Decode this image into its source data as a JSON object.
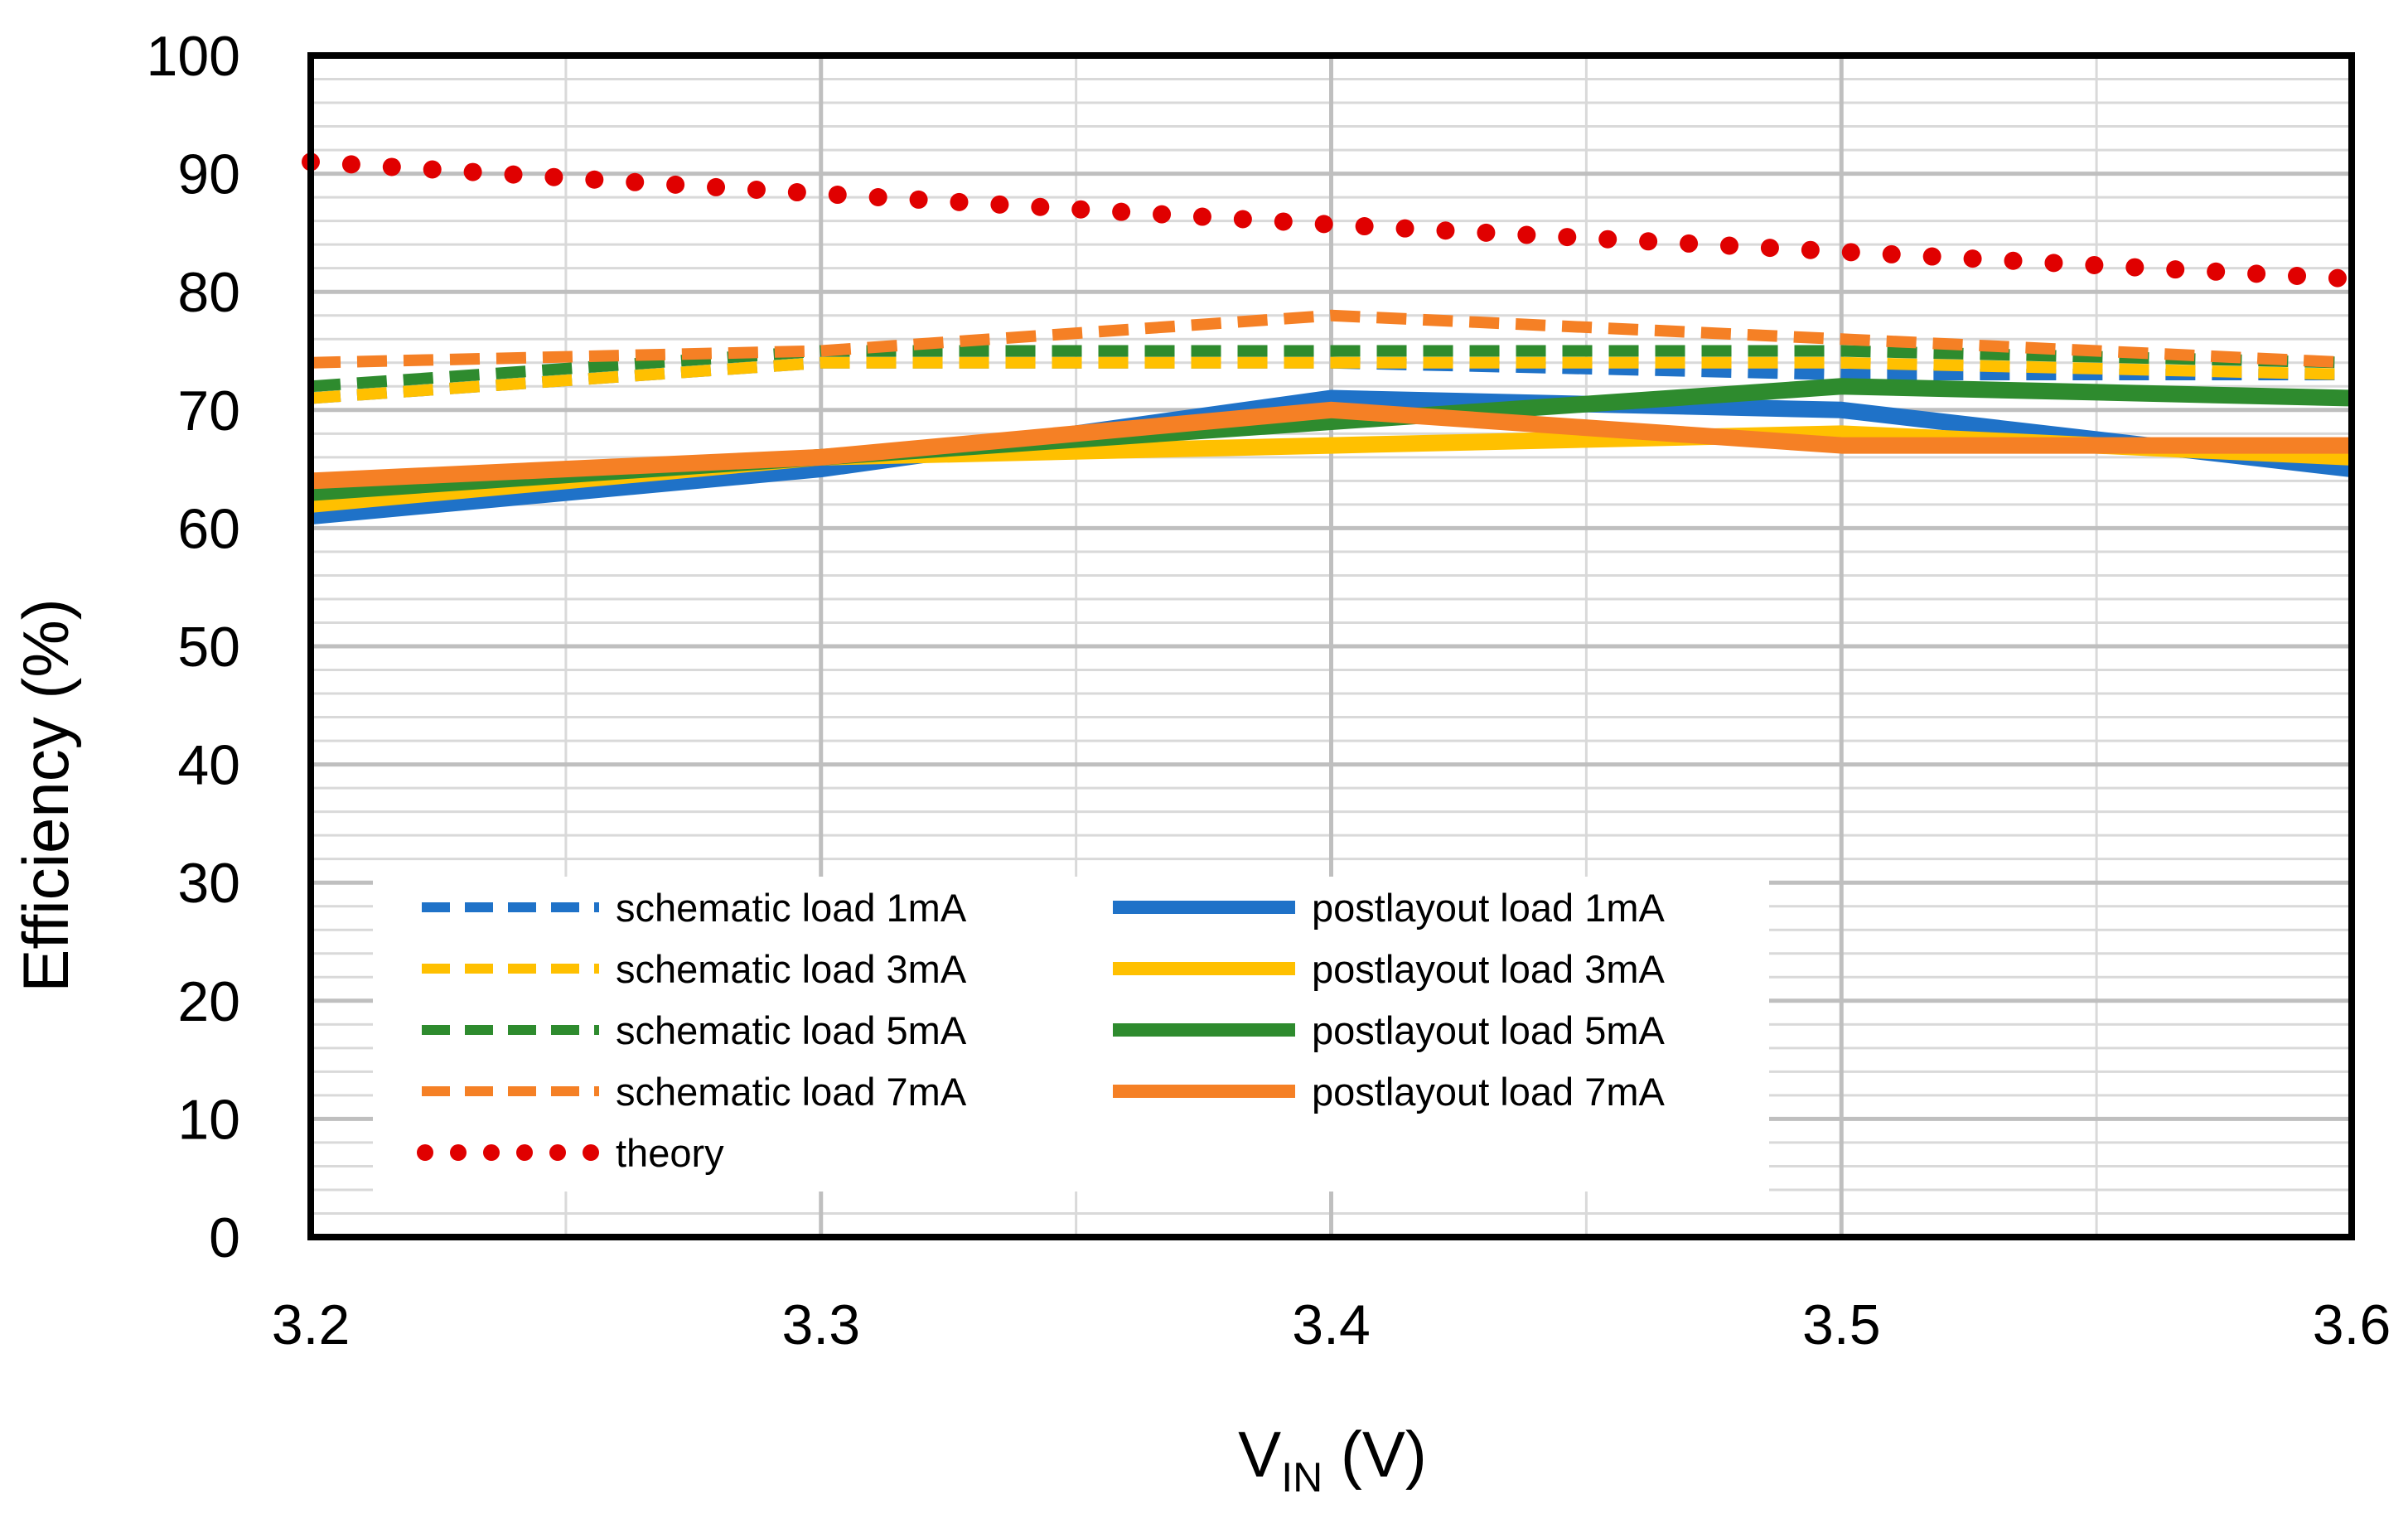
{
  "chart_data": {
    "type": "line",
    "title": "",
    "xlabel": "VIN (V)",
    "xlabel_main": "V",
    "xlabel_sub": "IN",
    "xlabel_suffix": " (V)",
    "ylabel": "Efficiency (%)",
    "xlim": [
      3.2,
      3.6
    ],
    "ylim": [
      0,
      100
    ],
    "x_ticks": [
      "3.2",
      "3.3",
      "3.4",
      "3.5",
      "3.6"
    ],
    "y_ticks": [
      "0",
      "10",
      "20",
      "30",
      "40",
      "50",
      "60",
      "70",
      "80",
      "90",
      "100"
    ],
    "grid": true,
    "legend_position": "lower-left",
    "x": [
      3.2,
      3.3,
      3.4,
      3.5,
      3.6
    ],
    "series": [
      {
        "name": "schematic load 1mA",
        "style": "dashed",
        "color": "#1F72C8",
        "values": [
          71,
          74,
          74,
          73,
          73
        ]
      },
      {
        "name": "postlayout load 1mA",
        "style": "solid",
        "color": "#1F72C8",
        "values": [
          61,
          65,
          71,
          70,
          65
        ]
      },
      {
        "name": "schematic load 3mA",
        "style": "dashed",
        "color": "#FFC000",
        "values": [
          71,
          74,
          74,
          74,
          73
        ]
      },
      {
        "name": "postlayout load 3mA",
        "style": "solid",
        "color": "#FFC000",
        "values": [
          62,
          66,
          67,
          68,
          66
        ]
      },
      {
        "name": "schematic load 5mA",
        "style": "dashed",
        "color": "#2E8B2E",
        "values": [
          72,
          75,
          75,
          75,
          74
        ]
      },
      {
        "name": "postlayout load 5mA",
        "style": "solid",
        "color": "#2E8B2E",
        "values": [
          63,
          66,
          69,
          72,
          71
        ]
      },
      {
        "name": "schematic load 7mA",
        "style": "dashed",
        "color": "#F58025",
        "values": [
          74,
          75,
          78,
          76,
          74
        ]
      },
      {
        "name": "postlayout load 7mA",
        "style": "solid",
        "color": "#F58025",
        "values": [
          64,
          66,
          70,
          67,
          67
        ]
      },
      {
        "name": "theory",
        "style": "dotted",
        "color": "#E00000",
        "values": [
          91,
          88.3,
          85.7,
          83.4,
          81.1
        ]
      }
    ]
  }
}
